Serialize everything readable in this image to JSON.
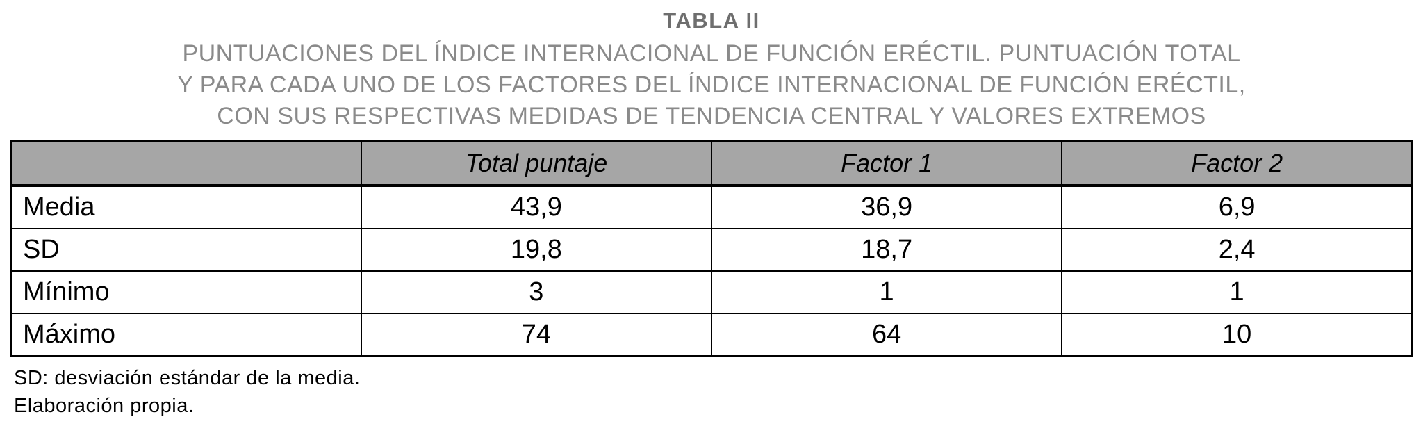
{
  "title": "TABLA II",
  "subtitle_lines": [
    "PUNTUACIONES DEL ÍNDICE INTERNACIONAL DE FUNCIÓN ERÉCTIL. PUNTUACIÓN TOTAL",
    "Y PARA CADA UNO DE LOS FACTORES DEL ÍNDICE INTERNACIONAL DE FUNCIÓN ERÉCTIL,",
    "CON SUS RESPECTIVAS MEDIDAS DE TENDENCIA CENTRAL Y VALORES EXTREMOS"
  ],
  "table": {
    "columns": [
      "",
      "Total puntaje",
      "Factor 1",
      "Factor 2"
    ],
    "rows": [
      {
        "label": "Media",
        "values": [
          "43,9",
          "36,9",
          "6,9"
        ]
      },
      {
        "label": "SD",
        "values": [
          "19,8",
          "18,7",
          "2,4"
        ]
      },
      {
        "label": "Mínimo",
        "values": [
          "3",
          "1",
          "1"
        ]
      },
      {
        "label": "Máximo",
        "values": [
          "74",
          "64",
          "10"
        ]
      }
    ]
  },
  "footnotes": [
    "SD: desviación estándar de la media.",
    "Elaboración propia."
  ],
  "colors": {
    "header_bg": "#a6a6a6",
    "title_text": "#6e6e6e",
    "subtitle_text": "#8a8a8a",
    "body_text": "#000000",
    "border": "#000000"
  },
  "chart_data": {
    "type": "table",
    "title": "TABLA II",
    "categories": [
      "Total puntaje",
      "Factor 1",
      "Factor 2"
    ],
    "series": [
      {
        "name": "Media",
        "values": [
          43.9,
          36.9,
          6.9
        ]
      },
      {
        "name": "SD",
        "values": [
          19.8,
          18.7,
          2.4
        ]
      },
      {
        "name": "Mínimo",
        "values": [
          3,
          1,
          1
        ]
      },
      {
        "name": "Máximo",
        "values": [
          74,
          64,
          10
        ]
      }
    ]
  }
}
